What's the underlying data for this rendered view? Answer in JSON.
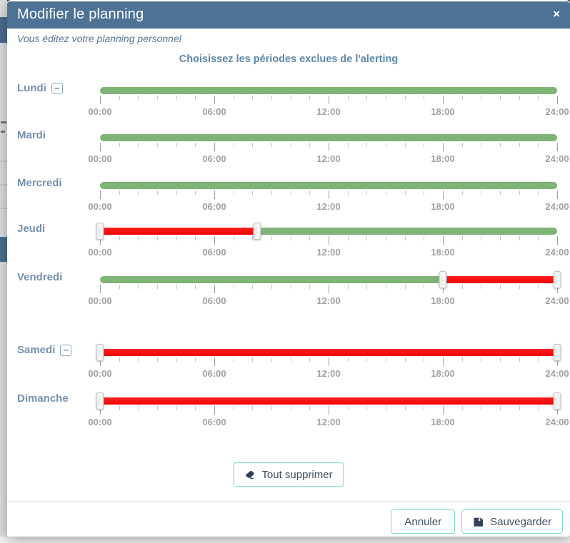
{
  "modal": {
    "title": "Modifier le planning",
    "subtitle": "Vous éditez votre planning personnel",
    "heading": "Choisissez les périodes exclues de l'alerting"
  },
  "icons": {
    "close": "×",
    "remove_day": "−",
    "clear_all": "eraser",
    "save": "floppy-disk"
  },
  "slider": {
    "hours_total": 24,
    "tick_interval_hours": 1,
    "major_tick_hours": 6,
    "tick_labels": [
      "00:00",
      "06:00",
      "12:00",
      "18:00",
      "24:00"
    ]
  },
  "days": [
    {
      "label": "Lundi",
      "removable": true,
      "excluded": []
    },
    {
      "label": "Mardi",
      "removable": false,
      "excluded": []
    },
    {
      "label": "Mercredi",
      "removable": false,
      "excluded": []
    },
    {
      "label": "Jeudi",
      "removable": false,
      "excluded": [
        {
          "from": "00:00",
          "to": "08:15"
        }
      ]
    },
    {
      "label": "Vendredi",
      "removable": false,
      "excluded": [
        {
          "from": "18:00",
          "to": "24:00"
        }
      ]
    },
    {
      "label": "Samedi",
      "removable": true,
      "excluded": [
        {
          "from": "00:00",
          "to": "24:00"
        }
      ]
    },
    {
      "label": "Dimanche",
      "removable": false,
      "excluded": [
        {
          "from": "00:00",
          "to": "24:00"
        }
      ]
    }
  ],
  "actions": {
    "clear_all": "Tout supprimer",
    "cancel": "Annuler",
    "save": "Sauvegarder"
  },
  "colors": {
    "header_bg": "#4e7296",
    "included_green": "#80b377",
    "excluded_red": "#f20d0d",
    "button_border_teal": "#7edccb",
    "day_label_blue": "#7590ae",
    "heading_blue": "#5d87ab",
    "subtitle_blue": "#5a7590",
    "tick_label_gray": "#9da1a5",
    "button_text": "#3d4f60",
    "icon_navy": "#2f4154"
  }
}
